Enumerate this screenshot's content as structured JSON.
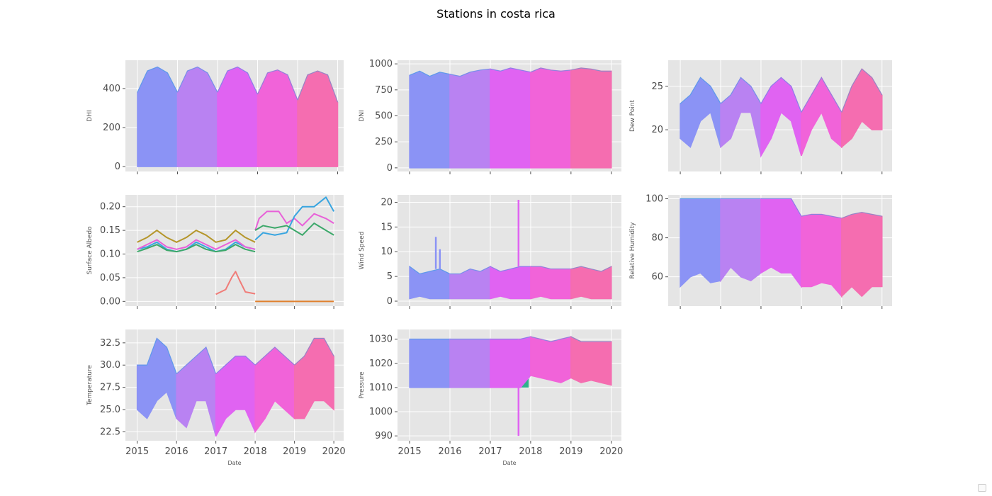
{
  "figure": {
    "title": "Stations in costa rica",
    "xlabel": "Date"
  },
  "colors": {
    "panel_bg": "#e5e5e5",
    "grid": "#ffffff",
    "tick_text": "#4d4d4d",
    "label_text": "#555555",
    "year_segments": [
      "#8b93f5",
      "#b982f2",
      "#e063f2",
      "#f163d9",
      "#f56db0"
    ],
    "stations": [
      "#e0802e",
      "#b5962a",
      "#3ca86a",
      "#38a5e0",
      "#e860d8",
      "#f07c78",
      "#2fb08c"
    ]
  },
  "chart_data": [
    {
      "type": "area",
      "ylabel": "DHI",
      "x": [
        2015,
        2015.25,
        2015.5,
        2015.75,
        2016,
        2016.25,
        2016.5,
        2016.75,
        2017,
        2017.25,
        2017.5,
        2017.75,
        2018,
        2018.25,
        2018.5,
        2018.75,
        2019,
        2019.25,
        2019.5,
        2019.75,
        2020
      ],
      "upper": [
        380,
        490,
        510,
        480,
        380,
        490,
        510,
        480,
        380,
        490,
        510,
        480,
        370,
        480,
        495,
        470,
        340,
        470,
        490,
        470,
        330
      ],
      "lower": [
        0,
        0,
        0,
        0,
        0,
        0,
        0,
        0,
        0,
        0,
        0,
        0,
        0,
        0,
        0,
        0,
        0,
        0,
        0,
        0,
        0
      ],
      "xlim": [
        2014.7,
        2020.15
      ],
      "ylim": [
        -25,
        545
      ],
      "yticks": [
        0,
        200,
        400
      ],
      "xticks": [
        2015,
        2016,
        2017,
        2018,
        2019,
        2020
      ],
      "show_xticklabels": false
    },
    {
      "type": "area",
      "ylabel": "DNI",
      "x": [
        2015,
        2015.25,
        2015.5,
        2015.75,
        2016,
        2016.25,
        2016.5,
        2016.75,
        2017,
        2017.25,
        2017.5,
        2017.75,
        2018,
        2018.25,
        2018.5,
        2018.75,
        2019,
        2019.25,
        2019.5,
        2019.75,
        2020
      ],
      "upper": [
        890,
        930,
        880,
        920,
        900,
        880,
        920,
        940,
        950,
        930,
        960,
        940,
        920,
        960,
        940,
        930,
        940,
        960,
        950,
        930,
        930
      ],
      "lower": [
        0,
        0,
        0,
        0,
        0,
        0,
        0,
        0,
        0,
        0,
        0,
        0,
        0,
        0,
        0,
        0,
        0,
        0,
        0,
        0,
        0
      ],
      "xlim": [
        2014.7,
        2020.25
      ],
      "ylim": [
        -35,
        1035
      ],
      "yticks": [
        0,
        250,
        500,
        750,
        1000
      ],
      "xticks": [
        2015,
        2016,
        2017,
        2018,
        2019,
        2020
      ],
      "show_xticklabels": false
    },
    {
      "type": "area",
      "ylabel": "Dew Point",
      "x": [
        2015,
        2015.25,
        2015.5,
        2015.75,
        2016,
        2016.25,
        2016.5,
        2016.75,
        2017,
        2017.25,
        2017.5,
        2017.75,
        2018,
        2018.25,
        2018.5,
        2018.75,
        2019,
        2019.25,
        2019.5,
        2019.75,
        2020
      ],
      "upper": [
        23,
        24,
        26,
        25,
        23,
        24,
        26,
        25,
        23,
        25,
        26,
        25,
        22,
        24,
        26,
        24,
        22,
        25,
        27,
        26,
        24
      ],
      "lower": [
        19,
        18,
        21,
        22,
        18,
        19,
        22,
        22,
        17,
        19,
        22,
        21,
        17,
        20,
        22,
        19,
        18,
        19,
        21,
        20,
        20
      ],
      "xlim": [
        2014.7,
        2020.25
      ],
      "ylim": [
        15.2,
        28
      ],
      "yticks": [
        20,
        25
      ],
      "xticks": [
        2015,
        2016,
        2017,
        2018,
        2019,
        2020
      ],
      "show_xticklabels": false
    },
    {
      "type": "line",
      "ylabel": "Surface Albedo",
      "xlim": [
        2014.7,
        2020.25
      ],
      "ylim": [
        -0.01,
        0.225
      ],
      "yticks": [
        0.0,
        0.05,
        0.1,
        0.15,
        0.2
      ],
      "ytick_labels": [
        "0.00",
        "0.05",
        "0.10",
        "0.15",
        "0.20"
      ],
      "xticks": [
        2015,
        2016,
        2017,
        2018,
        2019,
        2020
      ],
      "show_xticklabels": false,
      "series": [
        {
          "color_index": 1,
          "x": [
            2015,
            2015.25,
            2015.5,
            2015.75,
            2016,
            2016.25,
            2016.5,
            2016.75,
            2017,
            2017.25,
            2017.5,
            2017.75,
            2018
          ],
          "y": [
            0.125,
            0.135,
            0.15,
            0.135,
            0.125,
            0.135,
            0.15,
            0.14,
            0.125,
            0.13,
            0.15,
            0.135,
            0.125
          ]
        },
        {
          "color_index": 3,
          "x": [
            2015,
            2015.25,
            2015.5,
            2015.75,
            2016,
            2016.25,
            2016.5,
            2016.75,
            2017,
            2017.25,
            2017.5,
            2017.75,
            2018
          ],
          "y": [
            0.11,
            0.115,
            0.125,
            0.11,
            0.105,
            0.11,
            0.125,
            0.115,
            0.105,
            0.11,
            0.125,
            0.115,
            0.11
          ]
        },
        {
          "color_index": 2,
          "x": [
            2015,
            2015.25,
            2015.5,
            2015.75,
            2016,
            2016.25,
            2016.5,
            2016.75,
            2017,
            2017.25,
            2017.5,
            2017.75,
            2018
          ],
          "y": [
            0.105,
            0.112,
            0.12,
            0.108,
            0.105,
            0.11,
            0.12,
            0.11,
            0.105,
            0.108,
            0.12,
            0.11,
            0.105
          ]
        },
        {
          "color_index": 4,
          "x": [
            2015,
            2015.25,
            2015.5,
            2015.75,
            2016,
            2016.25,
            2016.5,
            2016.75,
            2017,
            2017.25,
            2017.5,
            2017.75,
            2018
          ],
          "y": [
            0.11,
            0.12,
            0.13,
            0.115,
            0.11,
            0.115,
            0.13,
            0.12,
            0.11,
            0.12,
            0.13,
            0.115,
            0.11
          ]
        },
        {
          "color_index": 5,
          "x": [
            2017,
            2017.25,
            2017.4,
            2017.5,
            2017.6,
            2017.75,
            2018
          ],
          "y": [
            0.015,
            0.025,
            0.05,
            0.063,
            0.045,
            0.02,
            0.016
          ]
        },
        {
          "color_index": 0,
          "x": [
            2018,
            2019,
            2020
          ],
          "y": [
            0.0,
            0.0,
            0.0
          ]
        },
        {
          "color_index": 4,
          "x": [
            2018,
            2018.1,
            2018.3,
            2018.6,
            2018.8,
            2019,
            2019.2,
            2019.5,
            2019.8,
            2020
          ],
          "y": [
            0.15,
            0.175,
            0.19,
            0.19,
            0.165,
            0.175,
            0.16,
            0.185,
            0.175,
            0.165
          ]
        },
        {
          "color_index": 3,
          "x": [
            2018,
            2018.2,
            2018.5,
            2018.8,
            2019,
            2019.2,
            2019.5,
            2019.8,
            2020
          ],
          "y": [
            0.13,
            0.145,
            0.14,
            0.145,
            0.18,
            0.2,
            0.2,
            0.22,
            0.19
          ]
        },
        {
          "color_index": 2,
          "x": [
            2018,
            2018.2,
            2018.5,
            2018.8,
            2019,
            2019.2,
            2019.5,
            2019.8,
            2020
          ],
          "y": [
            0.15,
            0.16,
            0.155,
            0.16,
            0.15,
            0.14,
            0.165,
            0.15,
            0.14
          ]
        }
      ]
    },
    {
      "type": "area",
      "ylabel": "Wind Speed",
      "x": [
        2015,
        2015.25,
        2015.5,
        2015.75,
        2016,
        2016.25,
        2016.5,
        2016.75,
        2017,
        2017.25,
        2017.5,
        2017.75,
        2018,
        2018.25,
        2018.5,
        2018.75,
        2019,
        2019.25,
        2019.5,
        2019.75,
        2020
      ],
      "upper": [
        7,
        5.5,
        6,
        6.5,
        5.5,
        5.5,
        6.5,
        6,
        7,
        6,
        6.5,
        7,
        7,
        7,
        6.5,
        6.5,
        6.5,
        7,
        6.5,
        6,
        7
      ],
      "lower": [
        0.5,
        1,
        0.5,
        0.5,
        0.5,
        0.5,
        0.5,
        0.5,
        0.5,
        1,
        0.5,
        0.5,
        0.5,
        1,
        0.5,
        0.5,
        0.5,
        1,
        0.5,
        0.5,
        0.5
      ],
      "spikes": [
        {
          "x": 2015.65,
          "y": 13
        },
        {
          "x": 2015.75,
          "y": 10.5
        },
        {
          "x": 2017.7,
          "y": 20.5
        }
      ],
      "xlim": [
        2014.7,
        2020.25
      ],
      "ylim": [
        -1,
        21.5
      ],
      "yticks": [
        0,
        5,
        10,
        15,
        20
      ],
      "xticks": [
        2015,
        2016,
        2017,
        2018,
        2019,
        2020
      ],
      "show_xticklabels": false
    },
    {
      "type": "area",
      "ylabel": "Relative Humidity",
      "x": [
        2015,
        2015.25,
        2015.5,
        2015.75,
        2016,
        2016.25,
        2016.5,
        2016.75,
        2017,
        2017.25,
        2017.5,
        2017.75,
        2018,
        2018.25,
        2018.5,
        2018.75,
        2019,
        2019.25,
        2019.5,
        2019.75,
        2020
      ],
      "upper": [
        100,
        100,
        100,
        100,
        100,
        100,
        100,
        100,
        100,
        100,
        100,
        100,
        91,
        92,
        92,
        91,
        90,
        92,
        93,
        92,
        91
      ],
      "lower": [
        55,
        60,
        62,
        57,
        58,
        65,
        60,
        58,
        62,
        65,
        62,
        62,
        55,
        55,
        57,
        56,
        50,
        55,
        50,
        55,
        55
      ],
      "xlim": [
        2014.7,
        2020.25
      ],
      "ylim": [
        45,
        102
      ],
      "yticks": [
        60,
        80,
        100
      ],
      "xticks": [
        2015,
        2016,
        2017,
        2018,
        2019,
        2020
      ],
      "show_xticklabels": false
    },
    {
      "type": "area",
      "ylabel": "Temperature",
      "xlabel": "Date",
      "x": [
        2015,
        2015.25,
        2015.5,
        2015.75,
        2016,
        2016.25,
        2016.5,
        2016.75,
        2017,
        2017.25,
        2017.5,
        2017.75,
        2018,
        2018.25,
        2018.5,
        2018.75,
        2019,
        2019.25,
        2019.5,
        2019.75,
        2020
      ],
      "upper": [
        30,
        30,
        33,
        32,
        29,
        30,
        31,
        32,
        29,
        30,
        31,
        31,
        30,
        31,
        32,
        31,
        30,
        31,
        33,
        33,
        31
      ],
      "lower": [
        25,
        24,
        26,
        27,
        24,
        23,
        26,
        26,
        22,
        24,
        25,
        25,
        22.5,
        24,
        26,
        25,
        24,
        24,
        26,
        26,
        25
      ],
      "xlim": [
        2014.7,
        2020.25
      ],
      "ylim": [
        21.5,
        34
      ],
      "yticks": [
        22.5,
        25.0,
        27.5,
        30.0,
        32.5
      ],
      "ytick_labels": [
        "22.5",
        "25.0",
        "27.5",
        "30.0",
        "32.5"
      ],
      "xticks": [
        2015,
        2016,
        2017,
        2018,
        2019,
        2020
      ],
      "show_xticklabels": true
    },
    {
      "type": "area",
      "ylabel": "Pressure",
      "xlabel": "Date",
      "x": [
        2015,
        2015.25,
        2015.5,
        2015.75,
        2016,
        2016.25,
        2016.5,
        2016.75,
        2017,
        2017.25,
        2017.5,
        2017.75,
        2018,
        2018.25,
        2018.5,
        2018.75,
        2019,
        2019.25,
        2019.5,
        2019.75,
        2020
      ],
      "upper": [
        1030,
        1030,
        1030,
        1030,
        1030,
        1030,
        1030,
        1030,
        1030,
        1030,
        1030,
        1030,
        1031,
        1030,
        1029,
        1030,
        1031,
        1029,
        1029,
        1029,
        1029
      ],
      "lower": [
        1010,
        1010,
        1010,
        1010,
        1010,
        1010,
        1010,
        1010,
        1010,
        1010,
        1010,
        1010,
        1015,
        1014,
        1013,
        1012,
        1014,
        1012,
        1013,
        1012,
        1011
      ],
      "band": {
        "x0": 2015,
        "x1": 2017.95,
        "y0": 1010,
        "y1": 1020,
        "color": "#2fb08c"
      },
      "spikes": [
        {
          "x": 2017.7,
          "y": 990
        }
      ],
      "xlim": [
        2014.7,
        2020.25
      ],
      "ylim": [
        988,
        1034
      ],
      "yticks": [
        990,
        1000,
        1010,
        1020,
        1030
      ],
      "xticks": [
        2015,
        2016,
        2017,
        2018,
        2019,
        2020
      ],
      "show_xticklabels": true
    }
  ]
}
